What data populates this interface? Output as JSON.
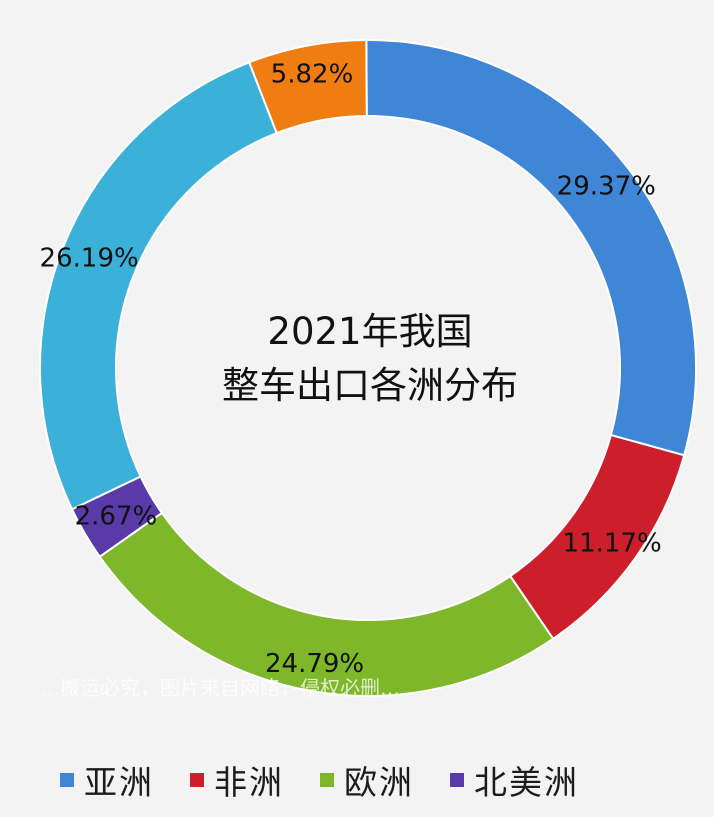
{
  "chart_data": {
    "type": "donut",
    "title_lines": [
      "2021年我国",
      "整车出口各洲分布"
    ],
    "slices": [
      {
        "name": "亚洲",
        "value": 29.37,
        "label": "29.37%",
        "color": "#3f86d6"
      },
      {
        "name": "非洲",
        "value": 11.17,
        "label": "11.17%",
        "color": "#cc1f2b"
      },
      {
        "name": "欧洲",
        "value": 24.79,
        "label": "24.79%",
        "color": "#7fb72b"
      },
      {
        "name": "北美洲",
        "value": 2.67,
        "label": "2.67%",
        "color": "#5a3aa8"
      },
      {
        "name": "",
        "value": 26.19,
        "label": "26.19%",
        "color": "#3bb0d8"
      },
      {
        "name": "",
        "value": 5.82,
        "label": "5.82%",
        "color": "#f07d12"
      }
    ],
    "legend": [
      {
        "label": "亚洲",
        "color": "#3f86d6"
      },
      {
        "label": "非洲",
        "color": "#cc1f2b"
      },
      {
        "label": "欧洲",
        "color": "#7fb72b"
      },
      {
        "label": "北美洲",
        "color": "#5a3aa8"
      }
    ],
    "legend_position": "bottom"
  },
  "watermark": "…搬运必究，图片来自网络，侵权必删…"
}
